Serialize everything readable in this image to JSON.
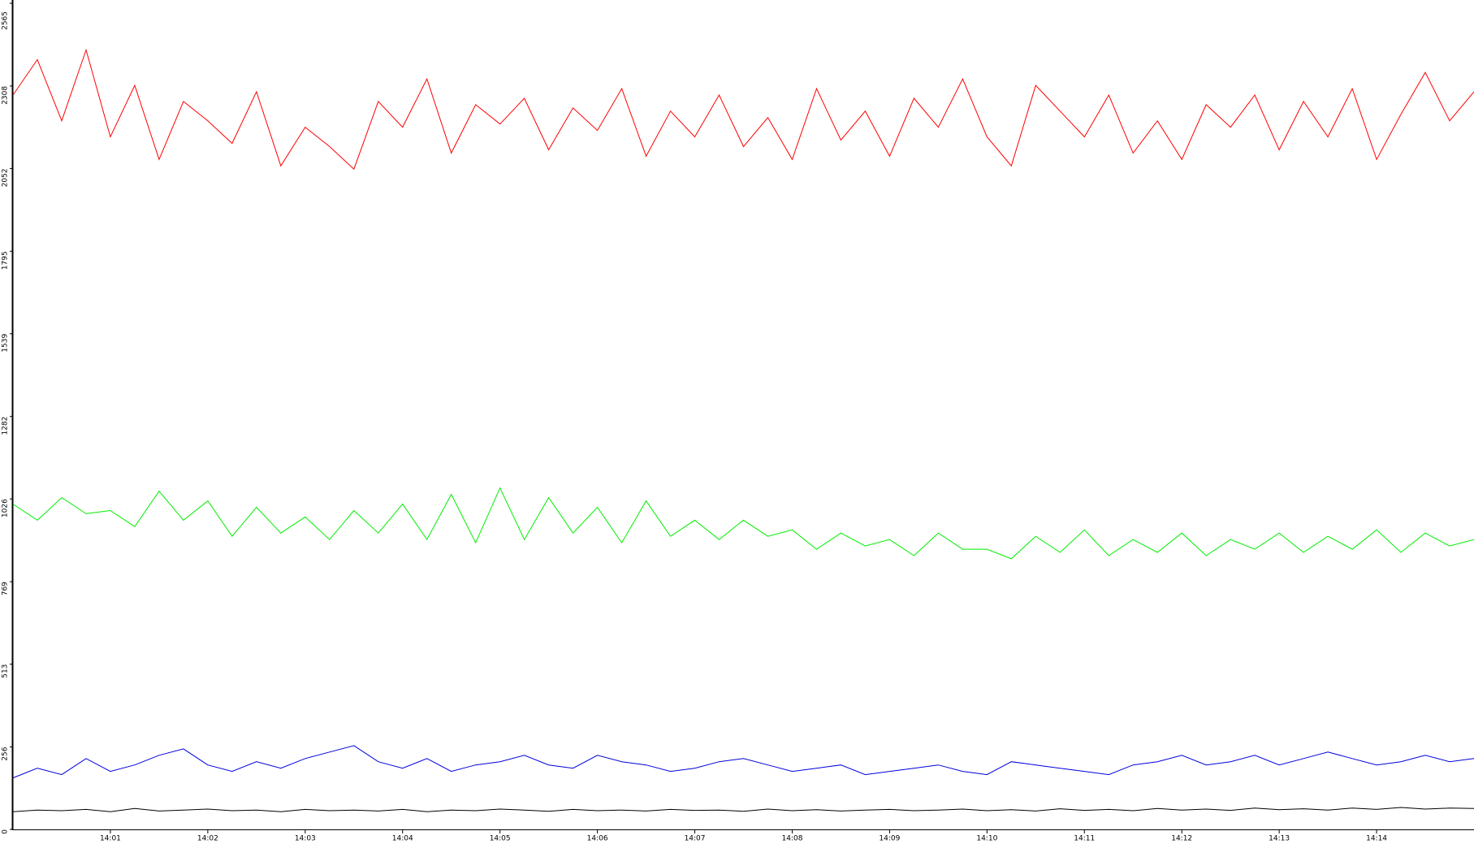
{
  "chart_data": {
    "type": "line",
    "x": [
      840,
      840.25,
      840.5,
      840.75,
      841,
      841.25,
      841.5,
      841.75,
      842,
      842.25,
      842.5,
      842.75,
      843,
      843.25,
      843.5,
      843.75,
      844,
      844.25,
      844.5,
      844.75,
      845,
      845.25,
      845.5,
      845.75,
      846,
      846.25,
      846.5,
      846.75,
      847,
      847.25,
      847.5,
      847.75,
      848,
      848.25,
      848.5,
      848.75,
      849,
      849.25,
      849.5,
      849.75,
      850,
      850.25,
      850.5,
      850.75,
      851,
      851.25,
      851.5,
      851.75,
      852,
      852.25,
      852.5,
      852.75,
      853,
      853.25,
      853.5,
      853.75,
      854,
      854.25,
      854.5,
      854.75,
      855
    ],
    "series": [
      {
        "color": "#ff0000",
        "values": [
          2280,
          2390,
          2200,
          2420,
          2150,
          2310,
          2080,
          2260,
          2200,
          2130,
          2290,
          2060,
          2180,
          2120,
          2050,
          2260,
          2180,
          2330,
          2100,
          2250,
          2190,
          2270,
          2110,
          2240,
          2170,
          2300,
          2090,
          2230,
          2150,
          2280,
          2120,
          2210,
          2080,
          2300,
          2140,
          2230,
          2090,
          2270,
          2180,
          2330,
          2150,
          2060,
          2310,
          2230,
          2150,
          2280,
          2100,
          2200,
          2080,
          2250,
          2180,
          2280,
          2110,
          2260,
          2150,
          2300,
          2080,
          2220,
          2350,
          2200,
          2290
        ]
      },
      {
        "color": "#00ee00",
        "values": [
          1010,
          960,
          1030,
          980,
          990,
          940,
          1050,
          960,
          1020,
          910,
          1000,
          920,
          970,
          900,
          990,
          920,
          1010,
          900,
          1040,
          890,
          1060,
          900,
          1030,
          920,
          1000,
          890,
          1020,
          910,
          960,
          900,
          960,
          910,
          930,
          870,
          920,
          880,
          900,
          850,
          920,
          870,
          870,
          840,
          910,
          860,
          930,
          850,
          900,
          860,
          920,
          850,
          900,
          870,
          920,
          860,
          910,
          870,
          930,
          860,
          920,
          880,
          900
        ]
      },
      {
        "color": "#0000dd",
        "values": [
          160,
          190,
          170,
          220,
          180,
          200,
          230,
          250,
          200,
          180,
          210,
          190,
          220,
          240,
          260,
          210,
          190,
          220,
          180,
          200,
          210,
          230,
          200,
          190,
          230,
          210,
          200,
          180,
          190,
          210,
          220,
          200,
          180,
          190,
          200,
          170,
          180,
          190,
          200,
          180,
          170,
          210,
          200,
          190,
          180,
          170,
          200,
          210,
          230,
          200,
          210,
          230,
          200,
          220,
          240,
          220,
          200,
          210,
          230,
          210,
          220
        ]
      },
      {
        "color": "#000000",
        "values": [
          55,
          60,
          58,
          62,
          55,
          65,
          57,
          60,
          63,
          58,
          60,
          55,
          62,
          58,
          60,
          57,
          62,
          55,
          60,
          58,
          63,
          60,
          56,
          62,
          58,
          60,
          57,
          62,
          59,
          60,
          56,
          63,
          58,
          61,
          57,
          60,
          62,
          58,
          60,
          63,
          58,
          61,
          57,
          64,
          59,
          62,
          58,
          65,
          60,
          63,
          59,
          66,
          61,
          64,
          60,
          66,
          62,
          68,
          63,
          66,
          65
        ]
      }
    ],
    "xlim": [
      840,
      855
    ],
    "xticks": [
      {
        "value": 841,
        "label": "14:01"
      },
      {
        "value": 842,
        "label": "14:02"
      },
      {
        "value": 843,
        "label": "14:03"
      },
      {
        "value": 844,
        "label": "14:04"
      },
      {
        "value": 845,
        "label": "14:05"
      },
      {
        "value": 846,
        "label": "14:06"
      },
      {
        "value": 847,
        "label": "14:07"
      },
      {
        "value": 848,
        "label": "14:08"
      },
      {
        "value": 849,
        "label": "14:09"
      },
      {
        "value": 850,
        "label": "14:10"
      },
      {
        "value": 851,
        "label": "14:11"
      },
      {
        "value": 852,
        "label": "14:12"
      },
      {
        "value": 853,
        "label": "14:13"
      },
      {
        "value": 854,
        "label": "14:14"
      }
    ],
    "ylim": [
      0,
      2565
    ],
    "yticks": [
      0,
      256,
      513,
      769,
      1026,
      1282,
      1539,
      1795,
      2052,
      2308,
      2565
    ]
  }
}
